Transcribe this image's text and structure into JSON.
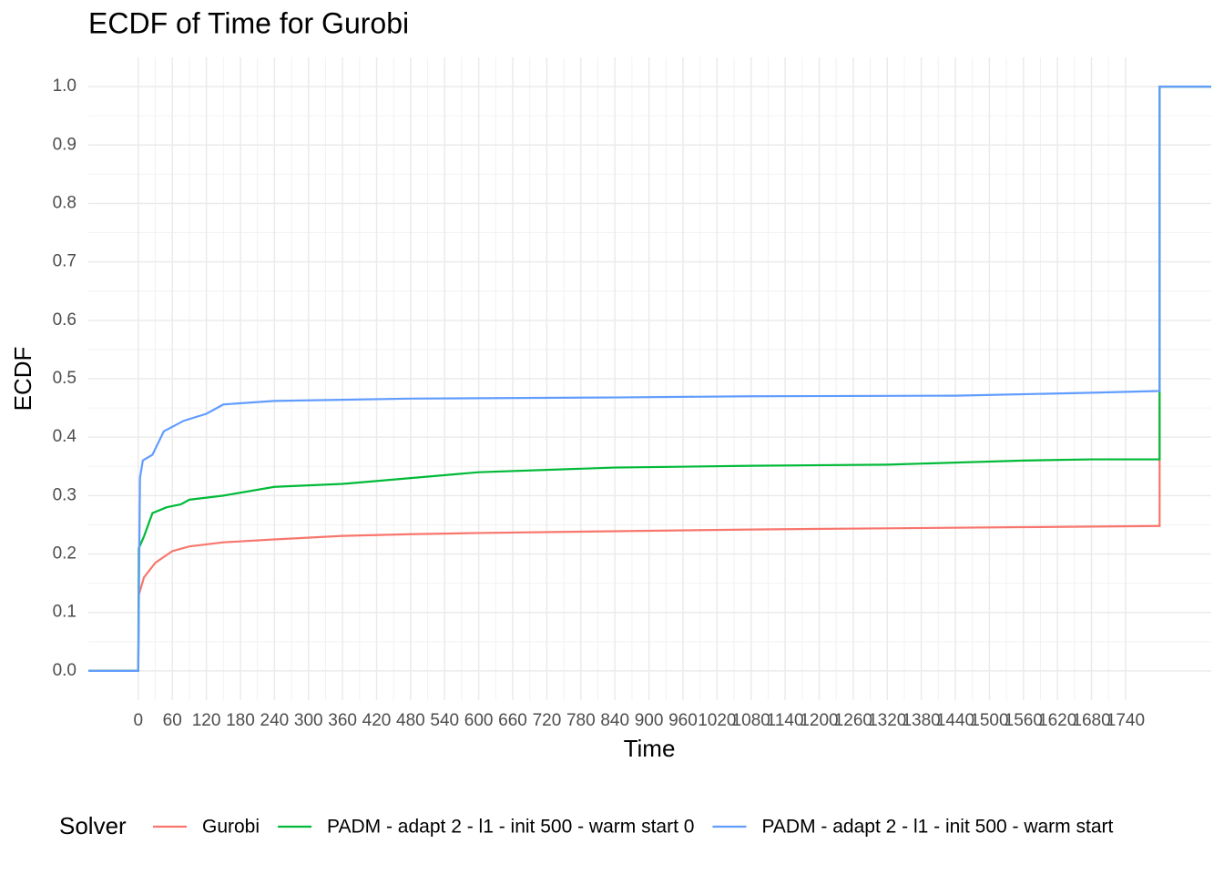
{
  "chart_data": {
    "type": "line",
    "title": "ECDF of Time for Gurobi",
    "x_label": "Time",
    "y_label": "ECDF",
    "legend_title": "Solver",
    "legend_position": "bottom",
    "grid": true,
    "xlim": [
      -88,
      1891
    ],
    "ylim": [
      -0.05,
      1.05
    ],
    "xticks": [
      0,
      60,
      120,
      180,
      240,
      300,
      360,
      420,
      480,
      540,
      600,
      660,
      720,
      780,
      840,
      900,
      960,
      1020,
      1080,
      1140,
      1200,
      1260,
      1320,
      1380,
      1440,
      1500,
      1560,
      1620,
      1680,
      1740
    ],
    "yticks": [
      {
        "value": 0,
        "label": "0.0"
      },
      0.1,
      0.2,
      0.3,
      0.4,
      0.5,
      0.6,
      0.7,
      0.8,
      0.9,
      {
        "value": 1,
        "label": "1.0"
      }
    ],
    "series": [
      {
        "name": "Gurobi",
        "color": "#F8766D",
        "x": [
          -88,
          0,
          1,
          10,
          30,
          60,
          90,
          150,
          240,
          360,
          480,
          600,
          840,
          1080,
          1320,
          1560,
          1800,
          1800,
          1891
        ],
        "values": [
          0,
          0,
          0.13,
          0.16,
          0.185,
          0.205,
          0.213,
          0.22,
          0.225,
          0.231,
          0.234,
          0.236,
          0.239,
          0.242,
          0.244,
          0.246,
          0.248,
          1,
          1
        ]
      },
      {
        "name": "PADM - adapt 2 - l1 - init 500 - warm start 0",
        "color": "#00BA38",
        "x": [
          -88,
          0,
          1,
          10,
          25,
          50,
          75,
          90,
          150,
          240,
          360,
          480,
          600,
          840,
          1080,
          1320,
          1560,
          1680,
          1800,
          1800,
          1891
        ],
        "values": [
          0,
          0,
          0.21,
          0.23,
          0.27,
          0.28,
          0.285,
          0.293,
          0.3,
          0.315,
          0.32,
          0.33,
          0.34,
          0.348,
          0.351,
          0.353,
          0.36,
          0.362,
          0.362,
          1,
          1
        ]
      },
      {
        "name": "PADM - adapt 2 - l1 - init 500 - warm start",
        "color": "#619CFF",
        "x": [
          -88,
          0,
          3,
          8,
          25,
          45,
          80,
          120,
          150,
          240,
          480,
          840,
          1080,
          1440,
          1680,
          1800,
          1800,
          1891
        ],
        "values": [
          0,
          0,
          0.33,
          0.36,
          0.37,
          0.41,
          0.428,
          0.44,
          0.456,
          0.462,
          0.466,
          0.468,
          0.47,
          0.471,
          0.476,
          0.479,
          1,
          1
        ]
      }
    ]
  }
}
